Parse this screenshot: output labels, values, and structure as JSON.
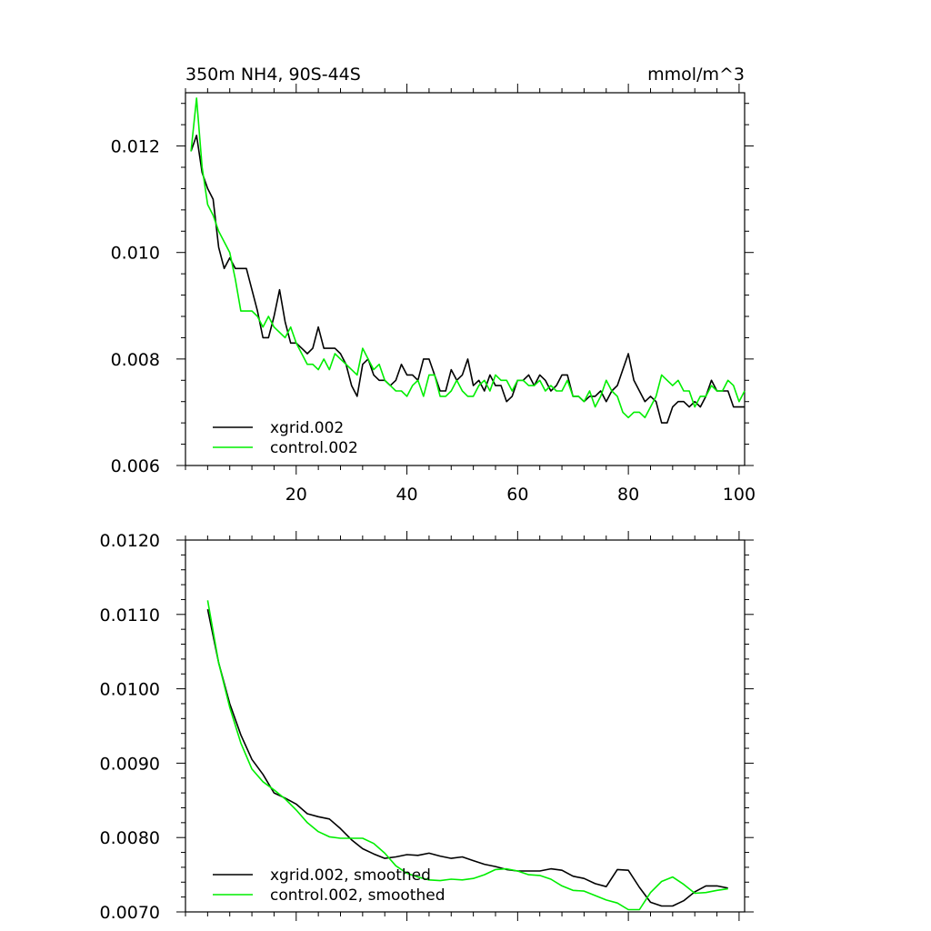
{
  "colors": {
    "xgrid": "#000000",
    "control": "#00ee00"
  },
  "chart_data": [
    {
      "type": "line",
      "title": "350m NH4, 90S-44S",
      "units": "mmol/m^3",
      "xlabel": "",
      "ylabel": "",
      "xlim": [
        0,
        101
      ],
      "ylim": [
        0.006,
        0.013
      ],
      "xticks": [
        20,
        40,
        60,
        80,
        100
      ],
      "xtick_labels": [
        "20",
        "40",
        "60",
        "80",
        "100"
      ],
      "yticks": [
        0.006,
        0.008,
        0.01,
        0.012
      ],
      "ytick_labels": [
        "0.006",
        "0.008",
        "0.010",
        "0.012"
      ],
      "legend_position": "bottom-left",
      "series": [
        {
          "name": "xgrid.002",
          "color": "#000000",
          "x": [
            1,
            2,
            3,
            4,
            5,
            6,
            7,
            8,
            9,
            10,
            11,
            12,
            13,
            14,
            15,
            16,
            17,
            18,
            19,
            20,
            21,
            22,
            23,
            24,
            25,
            26,
            27,
            28,
            29,
            30,
            31,
            32,
            33,
            34,
            35,
            36,
            37,
            38,
            39,
            40,
            41,
            42,
            43,
            44,
            45,
            46,
            47,
            48,
            49,
            50,
            51,
            52,
            53,
            54,
            55,
            56,
            57,
            58,
            59,
            60,
            61,
            62,
            63,
            64,
            65,
            66,
            67,
            68,
            69,
            70,
            71,
            72,
            73,
            74,
            75,
            76,
            77,
            78,
            79,
            80,
            81,
            82,
            83,
            84,
            85,
            86,
            87,
            88,
            89,
            90,
            91,
            92,
            93,
            94,
            95,
            96,
            97,
            98,
            99,
            100,
            101
          ],
          "values": [
            0.0119,
            0.0122,
            0.0115,
            0.0112,
            0.011,
            0.0101,
            0.0097,
            0.0099,
            0.0097,
            0.0097,
            0.0097,
            0.0093,
            0.0089,
            0.0084,
            0.0084,
            0.0088,
            0.0093,
            0.0087,
            0.0083,
            0.0083,
            0.0082,
            0.0081,
            0.0082,
            0.0086,
            0.0082,
            0.0082,
            0.0082,
            0.0081,
            0.0079,
            0.0075,
            0.0073,
            0.0079,
            0.008,
            0.0077,
            0.0076,
            0.0076,
            0.0075,
            0.0076,
            0.0079,
            0.0077,
            0.0077,
            0.0076,
            0.008,
            0.008,
            0.0077,
            0.0074,
            0.0074,
            0.0078,
            0.0076,
            0.0077,
            0.008,
            0.0075,
            0.0076,
            0.0074,
            0.0077,
            0.0075,
            0.0075,
            0.0072,
            0.0073,
            0.0076,
            0.0076,
            0.0077,
            0.0075,
            0.0077,
            0.0076,
            0.0074,
            0.0075,
            0.0077,
            0.0077,
            0.0073,
            0.0073,
            0.0072,
            0.0073,
            0.0073,
            0.0074,
            0.0072,
            0.0074,
            0.0075,
            0.0078,
            0.0081,
            0.0076,
            0.0074,
            0.0072,
            0.0073,
            0.0072,
            0.0068,
            0.0068,
            0.0071,
            0.0072,
            0.0072,
            0.0071,
            0.0072,
            0.0071,
            0.0073,
            0.0076,
            0.0074,
            0.0074,
            0.0074,
            0.0071,
            0.0071,
            0.0071
          ]
        },
        {
          "name": "control.002",
          "color": "#00ee00",
          "x": [
            1,
            2,
            3,
            4,
            5,
            6,
            7,
            8,
            9,
            10,
            11,
            12,
            13,
            14,
            15,
            16,
            17,
            18,
            19,
            20,
            21,
            22,
            23,
            24,
            25,
            26,
            27,
            28,
            29,
            30,
            31,
            32,
            33,
            34,
            35,
            36,
            37,
            38,
            39,
            40,
            41,
            42,
            43,
            44,
            45,
            46,
            47,
            48,
            49,
            50,
            51,
            52,
            53,
            54,
            55,
            56,
            57,
            58,
            59,
            60,
            61,
            62,
            63,
            64,
            65,
            66,
            67,
            68,
            69,
            70,
            71,
            72,
            73,
            74,
            75,
            76,
            77,
            78,
            79,
            80,
            81,
            82,
            83,
            84,
            85,
            86,
            87,
            88,
            89,
            90,
            91,
            92,
            93,
            94,
            95,
            96,
            97,
            98,
            99,
            100,
            101
          ],
          "values": [
            0.0119,
            0.0129,
            0.0116,
            0.0109,
            0.0107,
            0.0104,
            0.0102,
            0.01,
            0.0095,
            0.0089,
            0.0089,
            0.0089,
            0.0088,
            0.0086,
            0.0088,
            0.0086,
            0.0085,
            0.0084,
            0.0086,
            0.0083,
            0.0081,
            0.0079,
            0.0079,
            0.0078,
            0.008,
            0.0078,
            0.0081,
            0.008,
            0.0079,
            0.0078,
            0.0077,
            0.0082,
            0.008,
            0.0078,
            0.0079,
            0.0076,
            0.0075,
            0.0074,
            0.0074,
            0.0073,
            0.0075,
            0.0076,
            0.0073,
            0.0077,
            0.0077,
            0.0073,
            0.0073,
            0.0074,
            0.0076,
            0.0074,
            0.0073,
            0.0073,
            0.0075,
            0.0076,
            0.0074,
            0.0077,
            0.0076,
            0.0076,
            0.0074,
            0.0076,
            0.0076,
            0.0075,
            0.0075,
            0.0076,
            0.0074,
            0.0075,
            0.0074,
            0.0074,
            0.0076,
            0.0073,
            0.0073,
            0.0072,
            0.0074,
            0.0071,
            0.0073,
            0.0076,
            0.0074,
            0.0073,
            0.007,
            0.0069,
            0.007,
            0.007,
            0.0069,
            0.0071,
            0.0073,
            0.0077,
            0.0076,
            0.0075,
            0.0076,
            0.0074,
            0.0074,
            0.0071,
            0.0073,
            0.0073,
            0.0075,
            0.0074,
            0.0074,
            0.0076,
            0.0075,
            0.0072,
            0.0074
          ]
        }
      ]
    },
    {
      "type": "line",
      "title": "",
      "xlabel": "",
      "ylabel": "",
      "xlim": [
        0,
        101
      ],
      "ylim": [
        0.007,
        0.012
      ],
      "xticks": [
        20,
        40,
        60,
        80,
        100
      ],
      "yticks": [
        0.007,
        0.008,
        0.009,
        0.01,
        0.011,
        0.012
      ],
      "ytick_labels": [
        "0.0070",
        "0.0080",
        "0.0090",
        "0.0100",
        "0.0110",
        "0.0120"
      ],
      "legend_position": "bottom-left",
      "series": [
        {
          "name": "xgrid.002, smoothed",
          "color": "#000000",
          "x": [
            4,
            6,
            8,
            10,
            12,
            14,
            16,
            18,
            20,
            22,
            24,
            26,
            28,
            30,
            32,
            34,
            36,
            38,
            40,
            42,
            44,
            46,
            48,
            50,
            52,
            54,
            56,
            58,
            60,
            62,
            64,
            66,
            68,
            70,
            72,
            74,
            76,
            78,
            80,
            82,
            84,
            86,
            88,
            90,
            92,
            94,
            96,
            98
          ],
          "values": [
            0.01107,
            0.01035,
            0.0098,
            0.00938,
            0.00905,
            0.00885,
            0.0086,
            0.00853,
            0.00845,
            0.00832,
            0.00828,
            0.00825,
            0.00812,
            0.00797,
            0.00785,
            0.00778,
            0.00772,
            0.00774,
            0.00777,
            0.00776,
            0.00779,
            0.00775,
            0.00772,
            0.00774,
            0.00769,
            0.00764,
            0.00761,
            0.00757,
            0.00755,
            0.00755,
            0.00755,
            0.00758,
            0.00756,
            0.00748,
            0.00745,
            0.00738,
            0.00734,
            0.00757,
            0.00756,
            0.00733,
            0.00713,
            0.00708,
            0.00708,
            0.00715,
            0.00727,
            0.00735,
            0.00735,
            0.00732
          ]
        },
        {
          "name": "control.002, smoothed",
          "color": "#00ee00",
          "x": [
            4,
            6,
            8,
            10,
            12,
            14,
            16,
            18,
            20,
            22,
            24,
            26,
            28,
            30,
            32,
            34,
            36,
            38,
            40,
            42,
            44,
            46,
            48,
            50,
            52,
            54,
            56,
            58,
            60,
            62,
            64,
            66,
            68,
            70,
            72,
            74,
            76,
            78,
            80,
            82,
            84,
            86,
            88,
            90,
            92,
            94,
            96,
            98
          ],
          "values": [
            0.01119,
            0.01035,
            0.00975,
            0.00927,
            0.00892,
            0.00875,
            0.00864,
            0.00852,
            0.00837,
            0.0082,
            0.00808,
            0.00801,
            0.00799,
            0.00799,
            0.00799,
            0.00792,
            0.00779,
            0.00762,
            0.00752,
            0.00747,
            0.00743,
            0.00742,
            0.00744,
            0.00743,
            0.00745,
            0.0075,
            0.00757,
            0.00758,
            0.00755,
            0.0075,
            0.00749,
            0.00744,
            0.00735,
            0.00729,
            0.00728,
            0.00722,
            0.00716,
            0.00712,
            0.00703,
            0.00703,
            0.00726,
            0.00741,
            0.00747,
            0.00737,
            0.00725,
            0.00726,
            0.00729,
            0.00731
          ]
        }
      ]
    }
  ]
}
